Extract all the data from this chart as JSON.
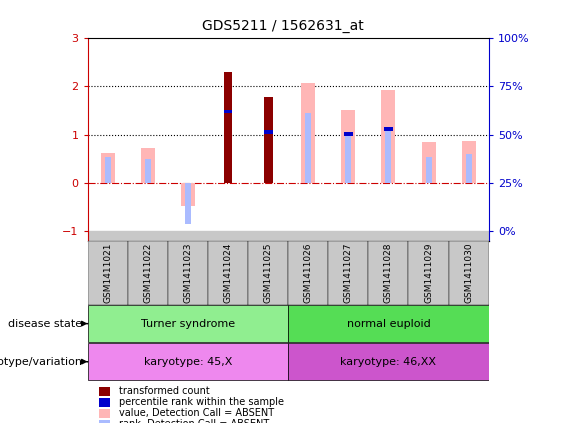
{
  "title": "GDS5211 / 1562631_at",
  "samples": [
    "GSM1411021",
    "GSM1411022",
    "GSM1411023",
    "GSM1411024",
    "GSM1411025",
    "GSM1411026",
    "GSM1411027",
    "GSM1411028",
    "GSM1411029",
    "GSM1411030"
  ],
  "transformed_count": [
    null,
    null,
    null,
    2.3,
    1.78,
    null,
    null,
    null,
    null,
    null
  ],
  "percentile_rank": [
    null,
    null,
    null,
    1.48,
    1.05,
    null,
    1.02,
    1.12,
    null,
    null
  ],
  "value_absent": [
    0.62,
    0.72,
    -0.48,
    null,
    null,
    2.08,
    1.52,
    1.92,
    0.85,
    0.87
  ],
  "rank_absent": [
    0.55,
    0.5,
    -0.85,
    null,
    null,
    1.45,
    1.0,
    1.1,
    0.55,
    0.6
  ],
  "ylim": [
    -1.2,
    3.0
  ],
  "y_left_ticks": [
    -1,
    0,
    1,
    2,
    3
  ],
  "y_right_ticks": [
    "0%",
    "25%",
    "50%",
    "75%",
    "100%"
  ],
  "y_right_tick_positions": [
    -1,
    0,
    1,
    2,
    3
  ],
  "disease_state_groups": [
    {
      "label": "Turner syndrome",
      "start": 0,
      "end": 5,
      "color": "#90EE90"
    },
    {
      "label": "normal euploid",
      "start": 5,
      "end": 10,
      "color": "#55DD55"
    }
  ],
  "genotype_groups": [
    {
      "label": "karyotype: 45,X",
      "start": 0,
      "end": 5,
      "color": "#EE88EE"
    },
    {
      "label": "karyotype: 46,XX",
      "start": 5,
      "end": 10,
      "color": "#CC55CC"
    }
  ],
  "value_absent_color": "#FFB6B6",
  "rank_absent_color": "#AABBFF",
  "transformed_count_color": "#8B0000",
  "percentile_rank_color": "#0000CC",
  "hline_color": "#CC0000",
  "bg_color": "#FFFFFF",
  "tick_bg_color": "#C8C8C8",
  "left_axis_color": "#CC0000",
  "right_axis_color": "#0000CC",
  "legend_items": [
    {
      "color": "#8B0000",
      "label": "transformed count"
    },
    {
      "color": "#0000CC",
      "label": "percentile rank within the sample"
    },
    {
      "color": "#FFB6B6",
      "label": "value, Detection Call = ABSENT"
    },
    {
      "color": "#AABBFF",
      "label": "rank, Detection Call = ABSENT"
    }
  ]
}
